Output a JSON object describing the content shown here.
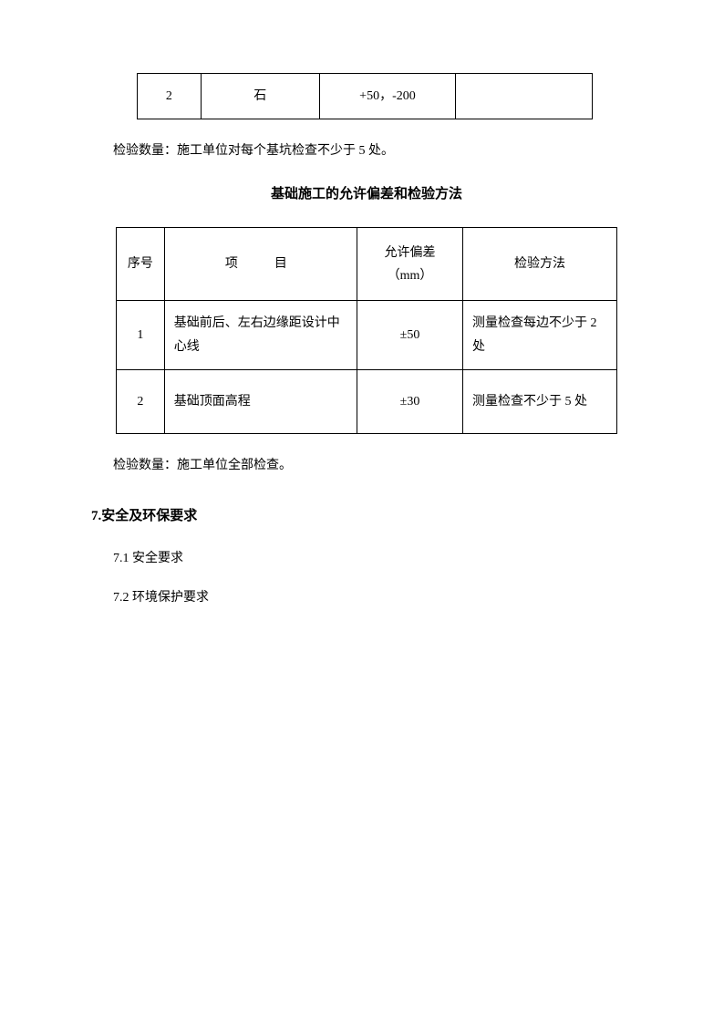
{
  "table1": {
    "row": {
      "no": "2",
      "item": "石",
      "tolerance": "+50，-200",
      "method": ""
    }
  },
  "para1": "检验数量：施工单位对每个基坑检查不少于 5 处。",
  "title2": "基础施工的允许偏差和检验方法",
  "table2": {
    "headers": {
      "no": "序号",
      "item": "项目",
      "tolerance1": "允许偏差",
      "tolerance2": "（mm）",
      "method": "检验方法"
    },
    "rows": [
      {
        "no": "1",
        "item": "基础前后、左右边缘距设计中心线",
        "tolerance": "±50",
        "method": "测量检查每边不少于 2 处"
      },
      {
        "no": "2",
        "item": "基础顶面高程",
        "tolerance": "±30",
        "method": "测量检查不少于 5 处"
      }
    ]
  },
  "para2": "检验数量：施工单位全部检查。",
  "section7": "7.安全及环保要求",
  "sub71": "7.1 安全要求",
  "sub72": "7.2 环境保护要求"
}
